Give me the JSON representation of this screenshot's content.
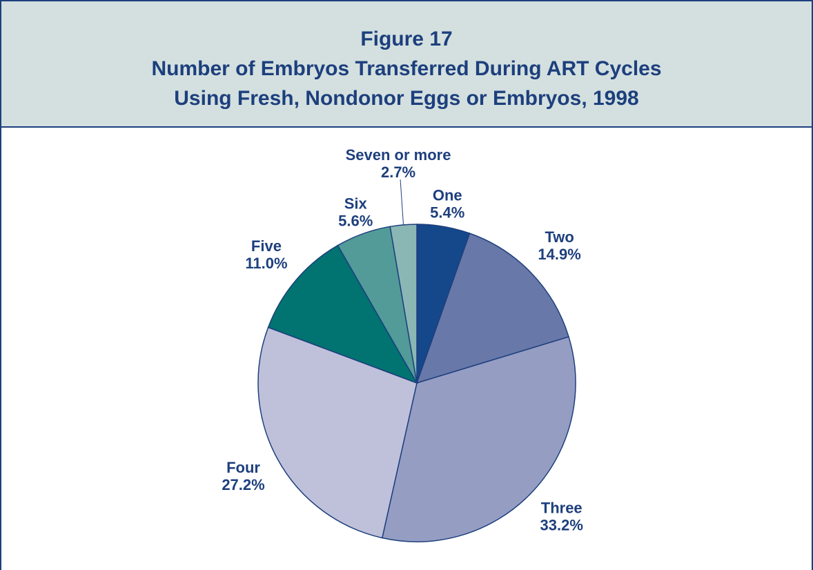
{
  "chart_data": {
    "type": "pie",
    "title": "Figure 17",
    "subtitle": [
      "Number of Embryos Transferred During ART Cycles",
      "Using Fresh, Nondonor Eggs or Embryos, 1998"
    ],
    "categories": [
      "One",
      "Two",
      "Three",
      "Four",
      "Five",
      "Six",
      "Seven or more"
    ],
    "values": [
      5.4,
      14.9,
      33.2,
      27.2,
      11.0,
      5.6,
      2.7
    ],
    "value_labels": [
      "5.4%",
      "14.9%",
      "33.2%",
      "27.2%",
      "11.0%",
      "5.6%",
      "2.7%"
    ],
    "colors": [
      "#15488a",
      "#6878a8",
      "#959dc3",
      "#bfc1da",
      "#017370",
      "#529b98",
      "#8ab7b4"
    ]
  }
}
